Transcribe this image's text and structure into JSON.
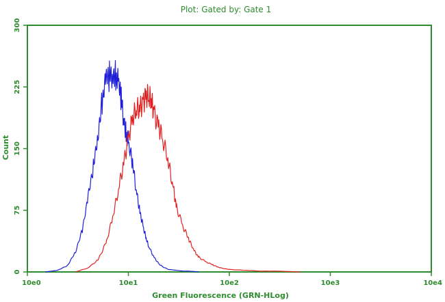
{
  "chart_data": {
    "type": "line",
    "title": "Plot: Gated by: Gate 1",
    "xlabel": "Green Fluorescence (GRN-HLog)",
    "ylabel": "Count",
    "x_scale": "log",
    "xlim": [
      1,
      10000
    ],
    "ylim": [
      0,
      300
    ],
    "grid": false,
    "legend": "none",
    "x_ticks": [
      {
        "value": 1,
        "label": "10e0"
      },
      {
        "value": 10,
        "label": "10e1"
      },
      {
        "value": 100,
        "label": "10e2"
      },
      {
        "value": 1000,
        "label": "10e3"
      },
      {
        "value": 10000,
        "label": "10e4"
      }
    ],
    "y_ticks": [
      {
        "value": 0,
        "label": "0"
      },
      {
        "value": 75,
        "label": "75"
      },
      {
        "value": 150,
        "label": "150"
      },
      {
        "value": 225,
        "label": "225"
      },
      {
        "value": 300,
        "label": "300"
      }
    ],
    "series": [
      {
        "color": "#1f1fd8",
        "x": [
          1.5,
          2.0,
          2.5,
          3.0,
          3.5,
          4.0,
          4.5,
          5.0,
          5.5,
          6.0,
          6.5,
          7.0,
          7.5,
          8.0,
          8.5,
          9.0,
          9.5,
          10.0,
          11.0,
          12.0,
          13.0,
          14.0,
          15.0,
          16.0,
          18.0,
          20.0,
          22.0,
          25.0,
          30.0,
          35.0,
          40.0,
          50.0
        ],
        "y": [
          0,
          2,
          8,
          25,
          50,
          90,
          130,
          170,
          205,
          230,
          240,
          245,
          238,
          225,
          210,
          190,
          170,
          155,
          130,
          100,
          75,
          55,
          40,
          30,
          18,
          10,
          6,
          3,
          2,
          1,
          1,
          0
        ]
      },
      {
        "color": "#e02020",
        "x": [
          3.0,
          4.0,
          5.0,
          6.0,
          7.0,
          8.0,
          9.0,
          10.0,
          11.0,
          12.0,
          13.0,
          14.0,
          15.0,
          16.0,
          17.0,
          18.0,
          20.0,
          22.0,
          25.0,
          28.0,
          30.0,
          35.0,
          40.0,
          45.0,
          50.0,
          60.0,
          70.0,
          80.0,
          100.0,
          150.0,
          200.0,
          300.0,
          500.0
        ],
        "y": [
          0,
          5,
          15,
          35,
          65,
          100,
          135,
          165,
          185,
          195,
          200,
          210,
          215,
          210,
          205,
          195,
          180,
          160,
          130,
          100,
          80,
          55,
          38,
          25,
          18,
          12,
          8,
          5,
          3,
          2,
          1,
          1,
          0
        ]
      }
    ]
  }
}
